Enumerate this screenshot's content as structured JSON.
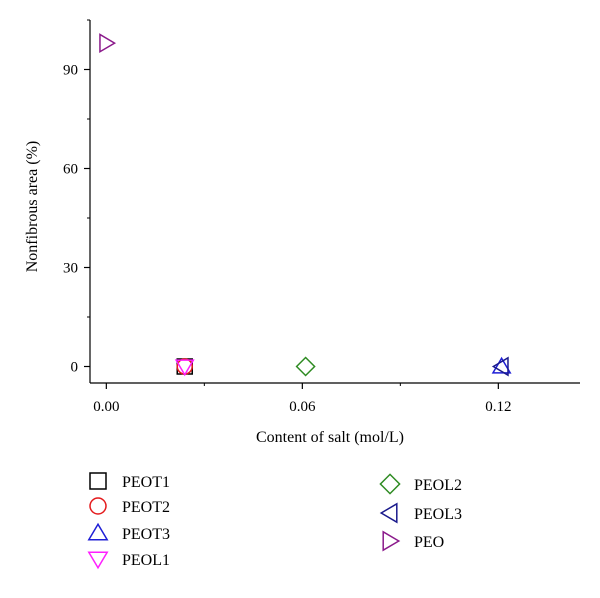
{
  "chart_data": {
    "type": "scatter",
    "title": "",
    "xlabel": "Content of salt (mol/L)",
    "ylabel": "Nonfibrous area (%)",
    "xlim": [
      -0.005,
      0.145
    ],
    "ylim": [
      -5,
      105
    ],
    "xticks": [
      0.0,
      0.06,
      0.12
    ],
    "xtick_labels": [
      "0.00",
      "0.06",
      "0.12"
    ],
    "yticks": [
      0,
      30,
      60,
      90
    ],
    "ytick_labels": [
      "0",
      "30",
      "60",
      "90"
    ],
    "grid": false,
    "legend_placement": "bottom",
    "series": [
      {
        "name": "PEOT1",
        "marker": "square",
        "color": "#000000",
        "x": [
          0.024
        ],
        "y": [
          0
        ]
      },
      {
        "name": "PEOT2",
        "marker": "circle",
        "color": "#e41a1c",
        "x": [
          0.024
        ],
        "y": [
          0
        ]
      },
      {
        "name": "PEOT3",
        "marker": "triangle-up",
        "color": "#1f1fd6",
        "x": [
          0.121
        ],
        "y": [
          0
        ]
      },
      {
        "name": "PEOL1",
        "marker": "triangle-down",
        "color": "#ff1fff",
        "x": [
          0.024
        ],
        "y": [
          0
        ]
      },
      {
        "name": "PEOL2",
        "marker": "diamond",
        "color": "#2e8b22",
        "x": [
          0.061
        ],
        "y": [
          0
        ]
      },
      {
        "name": "PEOL3",
        "marker": "triangle-left",
        "color": "#1a1a8c",
        "x": [
          0.121
        ],
        "y": [
          0
        ]
      },
      {
        "name": "PEO",
        "marker": "triangle-right",
        "color": "#8b1a8b",
        "x": [
          0.0
        ],
        "y": [
          98
        ]
      }
    ]
  }
}
